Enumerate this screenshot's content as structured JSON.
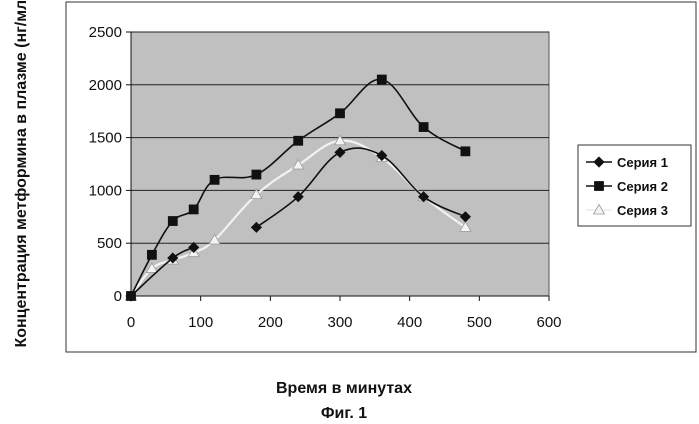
{
  "chart_data": {
    "type": "line",
    "title": "",
    "xlabel": "Время в минутах",
    "ylabel": "Концентрация метформина в плазме (нг/мл)",
    "caption": "Фиг. 1",
    "xlim": [
      0,
      600
    ],
    "ylim": [
      0,
      2500
    ],
    "x_ticks": [
      "0",
      "100",
      "200",
      "300",
      "400",
      "500",
      "600"
    ],
    "y_ticks": [
      "0",
      "500",
      "1000",
      "1500",
      "2000",
      "2500"
    ],
    "grid": "horizontal",
    "legend_position": "right",
    "plot_background": "#c0c0c0",
    "series": [
      {
        "name": "Серия 1",
        "marker": "diamond",
        "color": "#111111",
        "x": [
          0,
          60,
          90,
          180,
          240,
          300,
          360,
          420,
          480
        ],
        "y": [
          0,
          360,
          460,
          650,
          940,
          1360,
          1330,
          940,
          750
        ],
        "segments": [
          [
            0,
            1,
            2
          ],
          [
            3,
            4,
            5,
            6,
            7,
            8
          ]
        ]
      },
      {
        "name": "Серия 2",
        "marker": "square",
        "color": "#111111",
        "x": [
          0,
          30,
          60,
          90,
          120,
          180,
          240,
          300,
          360,
          420,
          480
        ],
        "y": [
          0,
          390,
          710,
          820,
          1100,
          1150,
          1470,
          1730,
          2050,
          1600,
          1370
        ],
        "segments": [
          [
            0,
            1,
            2,
            3,
            4,
            5,
            6,
            7,
            8,
            9,
            10
          ]
        ]
      },
      {
        "name": "Серия 3",
        "marker": "triangle",
        "color": "#f4f4f4",
        "x": [
          0,
          30,
          60,
          90,
          120,
          180,
          240,
          300,
          360,
          420,
          480
        ],
        "y": [
          0,
          260,
          340,
          410,
          530,
          960,
          1240,
          1470,
          1310,
          940,
          650
        ],
        "segments": [
          [
            0,
            1,
            2,
            3,
            4,
            5,
            6,
            7,
            8,
            9,
            10
          ]
        ]
      }
    ]
  }
}
